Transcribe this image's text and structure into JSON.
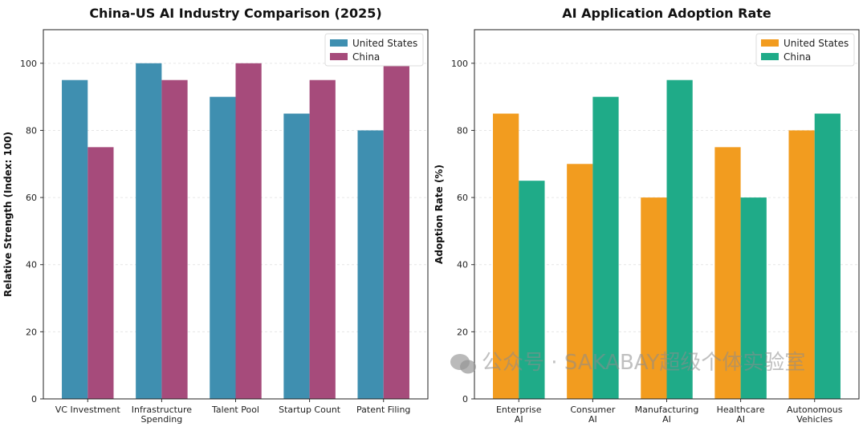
{
  "chart_data": [
    {
      "type": "bar",
      "title": "China-US AI Industry Comparison (2025)",
      "xlabel": "",
      "ylabel": "Relative Strength (Index: 100)",
      "categories": [
        [
          "VC Investment"
        ],
        [
          "Infrastructure",
          "Spending"
        ],
        [
          "Talent Pool"
        ],
        [
          "Startup Count"
        ],
        [
          "Patent Filing"
        ]
      ],
      "series": [
        {
          "name": "United States",
          "color": "#3f8fb0",
          "values": [
            95,
            100,
            90,
            85,
            80
          ]
        },
        {
          "name": "China",
          "color": "#a64b7b",
          "values": [
            75,
            95,
            100,
            95,
            100
          ]
        }
      ],
      "ylim": [
        0,
        110
      ],
      "yticks": [
        0,
        20,
        40,
        60,
        80,
        100
      ],
      "grid": true,
      "legend": "top-right"
    },
    {
      "type": "bar",
      "title": "AI Application Adoption Rate",
      "xlabel": "",
      "ylabel": "Adoption Rate (%)",
      "categories": [
        [
          "Enterprise",
          "AI"
        ],
        [
          "Consumer",
          "AI"
        ],
        [
          "Manufacturing",
          "AI"
        ],
        [
          "Healthcare",
          "AI"
        ],
        [
          "Autonomous",
          "Vehicles"
        ]
      ],
      "series": [
        {
          "name": "United States",
          "color": "#f29c1f",
          "values": [
            85,
            70,
            60,
            75,
            80
          ]
        },
        {
          "name": "China",
          "color": "#1fab88",
          "values": [
            65,
            90,
            95,
            60,
            85
          ]
        }
      ],
      "ylim": [
        0,
        110
      ],
      "yticks": [
        0,
        20,
        40,
        60,
        80,
        100
      ],
      "grid": true,
      "legend": "top-right"
    }
  ],
  "watermark": "公众号 · SAKABAY超级个体实验室"
}
